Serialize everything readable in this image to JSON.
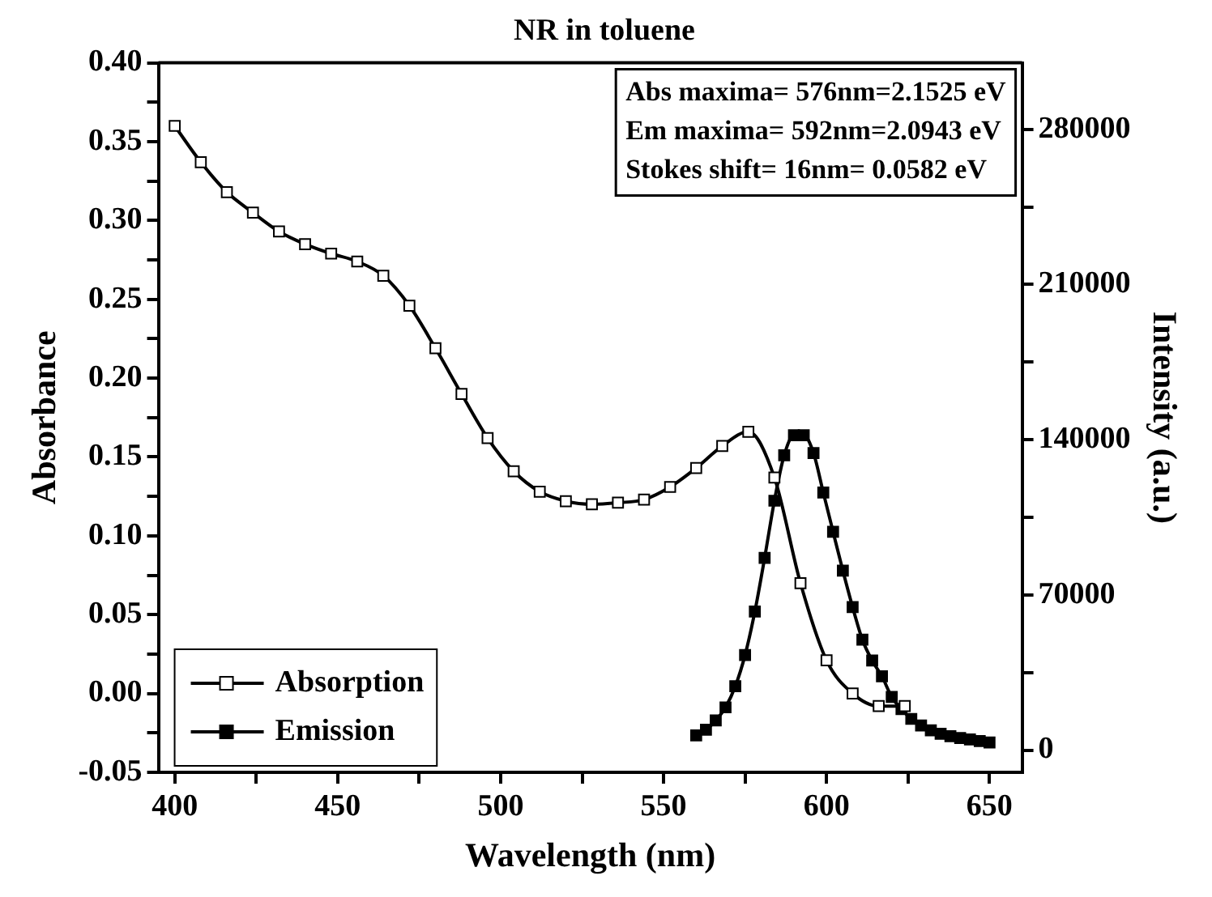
{
  "chart_data": {
    "type": "line",
    "title": "NR in toluene",
    "xlabel": "Wavelength (nm)",
    "ylabel": "Absorbance",
    "y2label": "Intensity (a.u.)",
    "annotations": [
      "Abs maxima= 576nm=2.1525 eV",
      "Em maxima= 592nm=2.0943 eV",
      "Stokes shift= 16nm= 0.0582 eV"
    ],
    "series": [
      {
        "name": "Absorption",
        "color": "#000000",
        "marker": "square",
        "x": [
          400,
          408,
          416,
          424,
          432,
          440,
          448,
          456,
          464,
          472,
          480,
          488,
          496,
          504,
          512,
          520,
          528,
          536,
          544,
          552,
          560,
          568,
          576,
          584,
          592,
          600,
          608,
          616,
          624
        ],
        "values": [
          0.36,
          0.337,
          0.318,
          0.305,
          0.293,
          0.285,
          0.279,
          0.274,
          0.265,
          0.246,
          0.219,
          0.19,
          0.162,
          0.141,
          0.128,
          0.122,
          0.12,
          0.121,
          0.123,
          0.131,
          0.143,
          0.157,
          0.166,
          0.137,
          0.07,
          0.021,
          0.0,
          -0.008,
          -0.008
        ]
      },
      {
        "name": "Emission",
        "color": "#000000",
        "marker": "square",
        "axis": "y2",
        "x": [
          560,
          563,
          566,
          569,
          572,
          575,
          578,
          581,
          584,
          587,
          590,
          593,
          596,
          599,
          602,
          605,
          608,
          611,
          614,
          617,
          620,
          623,
          626,
          629,
          632,
          635,
          638,
          641,
          644,
          647,
          650
        ],
        "values": [
          6700,
          9200,
          13400,
          19300,
          28800,
          42900,
          62500,
          86700,
          112500,
          133000,
          142000,
          142000,
          134000,
          116200,
          98500,
          81000,
          64500,
          49800,
          40400,
          33300,
          24000,
          18500,
          14100,
          11100,
          8900,
          7400,
          6300,
          5500,
          4800,
          4100,
          3500
        ]
      }
    ],
    "xlim": [
      395,
      660
    ],
    "xticks": [
      400,
      {
        "value": 425,
        "label": null
      },
      450,
      {
        "value": 475,
        "label": null
      },
      500,
      {
        "value": 525,
        "label": null
      },
      550,
      {
        "value": 575,
        "label": null
      },
      600,
      {
        "value": 625,
        "label": null
      },
      650
    ],
    "ylim": [
      -0.05,
      0.4
    ],
    "yticks": [
      {
        "value": -0.05,
        "label": "-0.05"
      },
      {
        "value": -0.025,
        "label": null
      },
      {
        "value": 0,
        "label": "0.00"
      },
      {
        "value": 0.025,
        "label": null
      },
      {
        "value": 0.05,
        "label": "0.05"
      },
      {
        "value": 0.075,
        "label": null
      },
      {
        "value": 0.1,
        "label": "0.10"
      },
      {
        "value": 0.125,
        "label": null
      },
      {
        "value": 0.15,
        "label": "0.15"
      },
      {
        "value": 0.175,
        "label": null
      },
      {
        "value": 0.2,
        "label": "0.20"
      },
      {
        "value": 0.225,
        "label": null
      },
      {
        "value": 0.25,
        "label": "0.25"
      },
      {
        "value": 0.275,
        "label": null
      },
      {
        "value": 0.3,
        "label": "0.30"
      },
      {
        "value": 0.325,
        "label": null
      },
      {
        "value": 0.35,
        "label": "0.35"
      },
      {
        "value": 0.375,
        "label": null
      },
      {
        "value": 0.4,
        "label": "0.40"
      }
    ],
    "y2lim": [
      -10000,
      310000
    ],
    "y2ticks": [
      0,
      {
        "value": 35000,
        "label": null
      },
      70000,
      {
        "value": 105000,
        "label": null
      },
      140000,
      {
        "value": 175000,
        "label": null
      },
      210000,
      {
        "value": 245000,
        "label": null
      },
      280000
    ],
    "grid": false,
    "legend": "bottom left",
    "line_style": "solid"
  }
}
